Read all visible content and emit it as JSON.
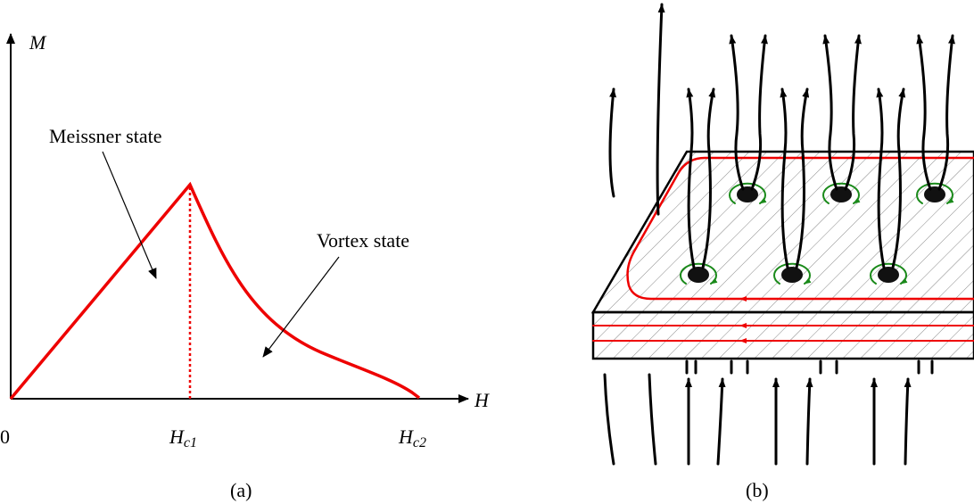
{
  "panel_a": {
    "y_axis_label": "M",
    "x_axis_label": "H",
    "origin_label": "0",
    "ticks": [
      {
        "symbol": "H",
        "subscript": "c1"
      },
      {
        "symbol": "H",
        "subscript": "c2"
      }
    ],
    "annotations": [
      "Meissner state",
      "Vortex state"
    ],
    "caption": "(a)"
  },
  "panel_b": {
    "caption": "(b)"
  }
}
